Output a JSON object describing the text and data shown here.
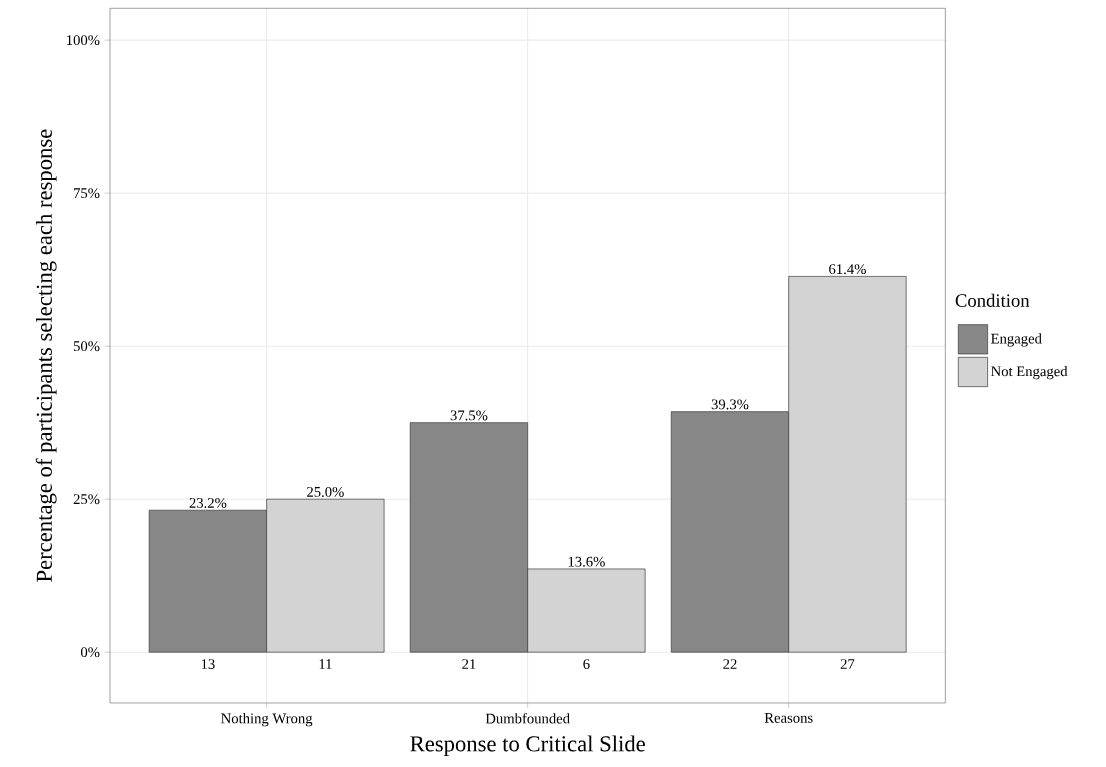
{
  "chart_data": {
    "type": "bar",
    "xlabel": "Response to Critical Slide",
    "ylabel": "Percentage of participants selecting each response",
    "categories": [
      "Nothing Wrong",
      "Dumbfounded",
      "Reasons"
    ],
    "series": [
      {
        "name": "Engaged",
        "color": "#878787",
        "values": [
          23.2,
          37.5,
          39.3
        ],
        "value_labels": [
          "23.2%",
          "37.5%",
          "39.3%"
        ]
      },
      {
        "name": "Not Engaged",
        "color": "#d3d3d3",
        "values": [
          25.0,
          13.6,
          61.4
        ],
        "value_labels": [
          "25.0%",
          "13.6%",
          "61.4%"
        ]
      }
    ],
    "legend_title": "Condition",
    "legend": "right",
    "grid": true,
    "ylim": [
      -8.3,
      105.2
    ],
    "yticks": [
      {
        "value": 0,
        "label": "0%"
      },
      {
        "value": 25,
        "label": "25%"
      },
      {
        "value": 50,
        "label": "50%"
      },
      {
        "value": 75,
        "label": "75%"
      },
      {
        "value": 100,
        "label": "100%"
      }
    ],
    "annotations": [
      "13",
      "11",
      "21",
      "6",
      "22",
      "27"
    ]
  }
}
